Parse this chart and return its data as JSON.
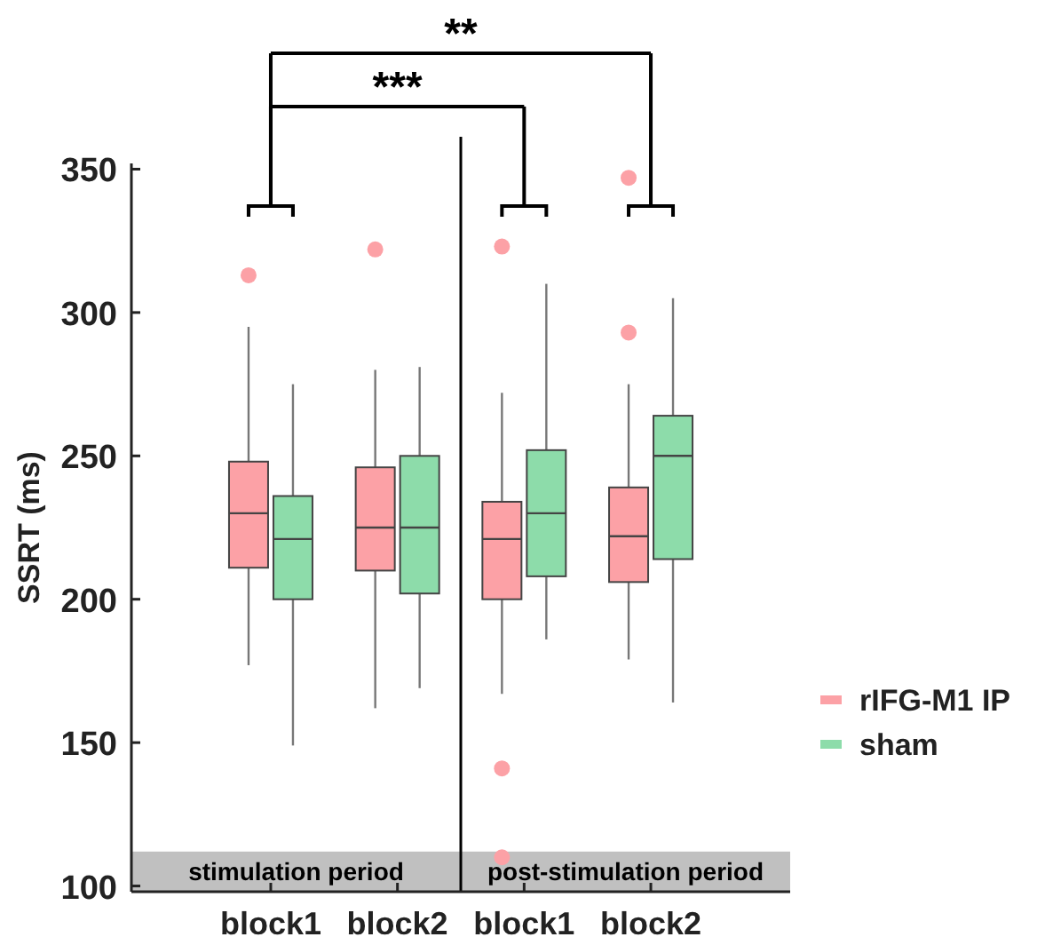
{
  "chart_data": {
    "type": "box",
    "ylabel": "SSRT (ms)",
    "categories": [
      "block1",
      "block2",
      "block1",
      "block2"
    ],
    "ylim": [
      98,
      352
    ],
    "yticks": [
      100,
      150,
      200,
      250,
      300,
      350
    ],
    "legend": "right",
    "grid": false,
    "series": [
      {
        "name": "rIFG-M1 IP",
        "color": "#fca1a6",
        "boxes": [
          {
            "low": 177,
            "q1": 211,
            "median": 230,
            "q3": 248,
            "high": 295,
            "outliers": [
              313
            ]
          },
          {
            "low": 162,
            "q1": 210,
            "median": 225,
            "q3": 246,
            "high": 280,
            "outliers": [
              322
            ]
          },
          {
            "low": 167,
            "q1": 200,
            "median": 221,
            "q3": 234,
            "high": 272,
            "outliers": [
              323,
              141,
              110
            ]
          },
          {
            "low": 179,
            "q1": 206,
            "median": 222,
            "q3": 239,
            "high": 275,
            "outliers": [
              347,
              293
            ]
          }
        ]
      },
      {
        "name": "sham",
        "color": "#8ddcaa",
        "boxes": [
          {
            "low": 149,
            "q1": 200,
            "median": 221,
            "q3": 236,
            "high": 275
          },
          {
            "low": 169,
            "q1": 202,
            "median": 225,
            "q3": 250,
            "high": 281
          },
          {
            "low": 186,
            "q1": 208,
            "median": 230,
            "q3": 252,
            "high": 310
          },
          {
            "low": 164,
            "q1": 214,
            "median": 250,
            "q3": 264,
            "high": 305
          }
        ]
      }
    ],
    "bands": [
      {
        "axis": "y",
        "from": 98,
        "to": 112,
        "label": "stimulation period",
        "color": "#c0c0c0"
      },
      {
        "axis": "y",
        "from": 98,
        "to": 112,
        "label": "post-stimulation period",
        "color": "#c0c0c0"
      }
    ],
    "annotations": [
      "***",
      "**"
    ]
  }
}
